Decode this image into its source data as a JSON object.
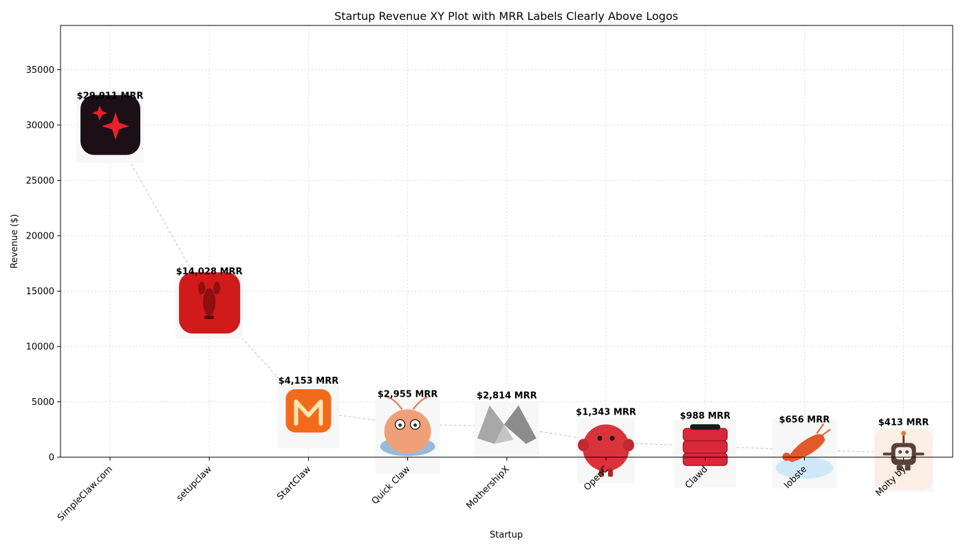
{
  "chart_data": {
    "type": "scatter",
    "title": "Startup Revenue XY Plot with MRR Labels Clearly Above Logos",
    "xlabel": "Startup",
    "ylabel": "Revenue ($)",
    "ylim": [
      0,
      39000
    ],
    "yticks": [
      0,
      5000,
      10000,
      15000,
      20000,
      25000,
      30000,
      35000
    ],
    "grid": true,
    "categories": [
      "SimpleClaw.com",
      "setupclaw",
      "StartClaw",
      "Quick Claw",
      "MothershipX",
      "OpenC",
      "Clawd",
      "lobste",
      "Molty by"
    ],
    "values": [
      29911,
      14028,
      4153,
      2955,
      2814,
      1343,
      988,
      656,
      413
    ],
    "labels": [
      "$29,911 MRR",
      "$14,028 MRR",
      "$4,153 MRR",
      "$2,955 MRR",
      "$2,814 MRR",
      "$1,343 MRR",
      "$988 MRR",
      "$656 MRR",
      "$413 MRR"
    ],
    "logos": [
      "sparkle-logo-icon",
      "lobster-logo-icon",
      "m-logo-icon",
      "shrimp-logo-icon",
      "mothership-logo-icon",
      "red-ball-logo-icon",
      "server-stack-logo-icon",
      "lobster-cloud-logo-icon",
      "robot-logo-icon"
    ],
    "colors": {
      "line": "#c8c8c8",
      "grid": "#d9d9d9",
      "sparkle_bg": "#1c0f16",
      "sparkle": "#e8202a",
      "lobster_bg": "#d11a1a",
      "m_bg": "#f26a1b",
      "red_ball": "#d8343a",
      "server": "#d8283a",
      "lobster": "#e25a2a",
      "robot_bg": "#fbeee4",
      "robot": "#5a4036"
    }
  }
}
